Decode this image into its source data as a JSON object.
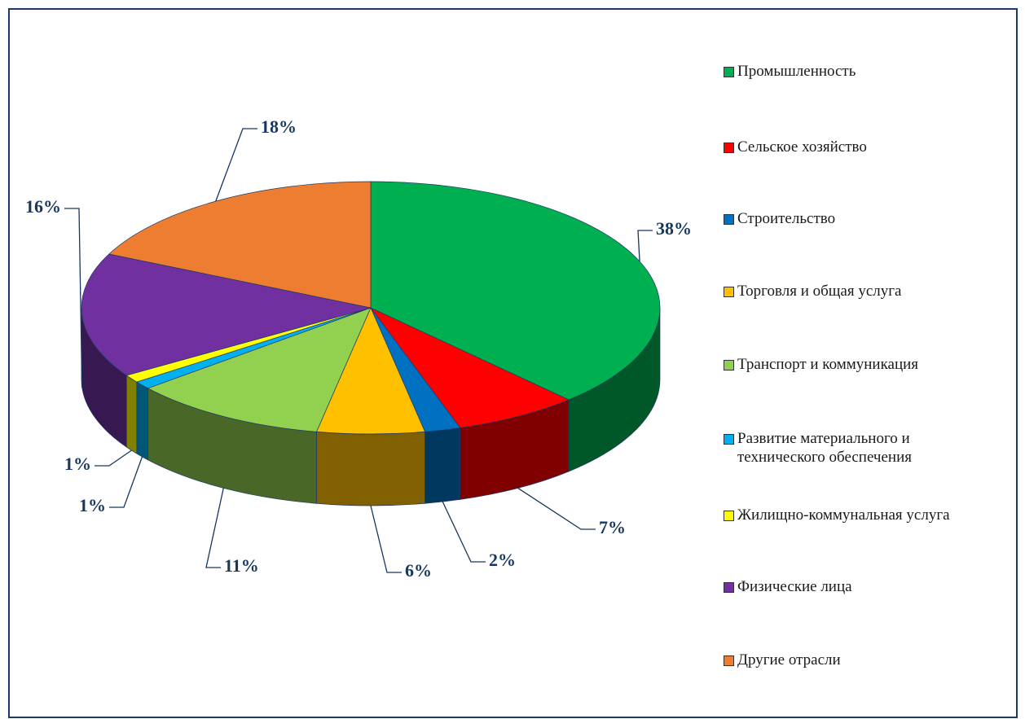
{
  "chart_data": {
    "type": "pie",
    "categories": [
      "Промышленность",
      "Сельское хозяйство",
      "Строительство",
      "Торговля и общая услуга",
      "Транспорт и коммуникация",
      "Развитие материального и технического обеспечения",
      "Жилищно-коммунальная услуга",
      "Физические лица",
      "Другие отрасли"
    ],
    "values": [
      38,
      7,
      2,
      6,
      11,
      1,
      1,
      16,
      18
    ],
    "value_labels": [
      "38%",
      "7%",
      "2%",
      "6%",
      "11%",
      "1%",
      "1%",
      "16%",
      "18%"
    ],
    "colors": [
      "#00b050",
      "#ff0000",
      "#0070c0",
      "#ffc000",
      "#92d050",
      "#00b0f0",
      "#ffff00",
      "#7030a0",
      "#ed7d31"
    ],
    "legend": "right"
  }
}
